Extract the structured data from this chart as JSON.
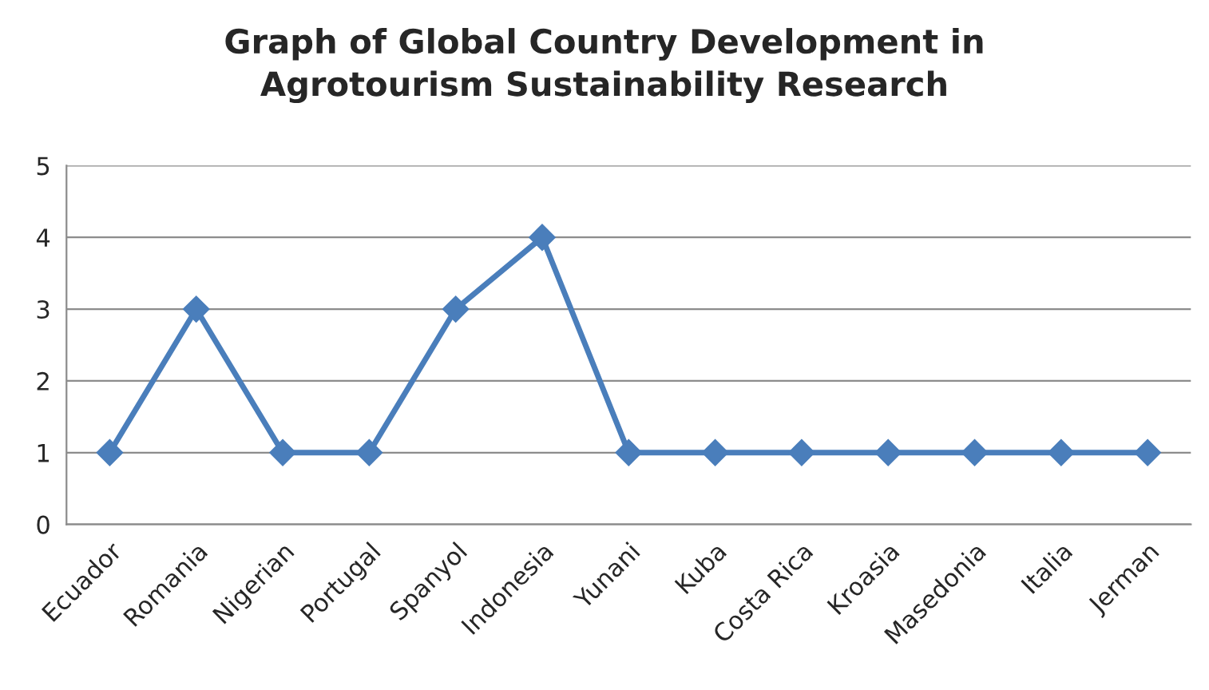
{
  "chart_data": {
    "type": "line",
    "title": "Graph of Global Country Development in\nAgrotourism Sustainability Research",
    "categories": [
      "Ecuador",
      "Romania",
      "Nigerian",
      "Portugal",
      "Spanyol",
      "Indonesia",
      "Yunani",
      "Kuba",
      "Costa Rica",
      "Kroasia",
      "Masedonia",
      "Italia",
      "Jerman"
    ],
    "series": [
      {
        "color": "#4a7ebb",
        "values": [
          1,
          3,
          1,
          1,
          3,
          4,
          1,
          1,
          1,
          1,
          1,
          1,
          1
        ]
      }
    ],
    "ylim": [
      0,
      5
    ],
    "yticks": [
      0,
      1,
      2,
      3,
      4,
      5
    ],
    "grid": "y",
    "legend": false,
    "marker": "diamond",
    "line_style": "solid"
  }
}
